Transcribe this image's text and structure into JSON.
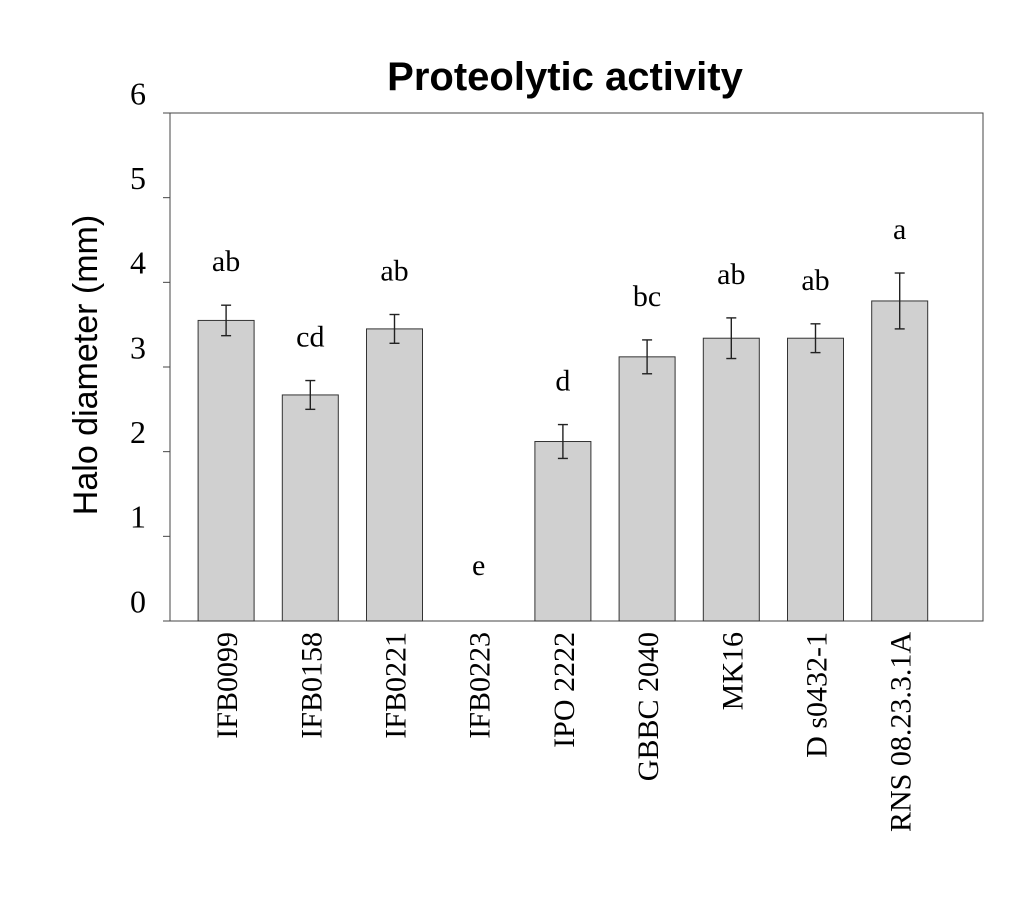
{
  "chart_data": {
    "type": "bar",
    "title": "Proteolytic activity",
    "ylabel": "Halo diameter (mm)",
    "xlabel": "",
    "ylim": [
      0,
      6
    ],
    "yticks": [
      "0",
      "1",
      "2",
      "3",
      "4",
      "5",
      "6"
    ],
    "grid": false,
    "categories": [
      "IFB0099",
      "IFB0158",
      "IFB0221",
      "IFB0223",
      "IPO 2222",
      "GBBC 2040",
      "MK16",
      "D s0432-1",
      "RNS 08.23.3.1A"
    ],
    "values": [
      3.55,
      2.67,
      3.45,
      0,
      2.12,
      3.12,
      3.34,
      3.34,
      3.78
    ],
    "errors": [
      0.18,
      0.17,
      0.17,
      0,
      0.2,
      0.2,
      0.24,
      0.17,
      0.33
    ],
    "letters": [
      "ab",
      "cd",
      "ab",
      "e",
      "d",
      "bc",
      "ab",
      "ab",
      "a"
    ],
    "colors": {
      "bar": "#d0d0d0",
      "bar_edge": "#333333"
    }
  }
}
